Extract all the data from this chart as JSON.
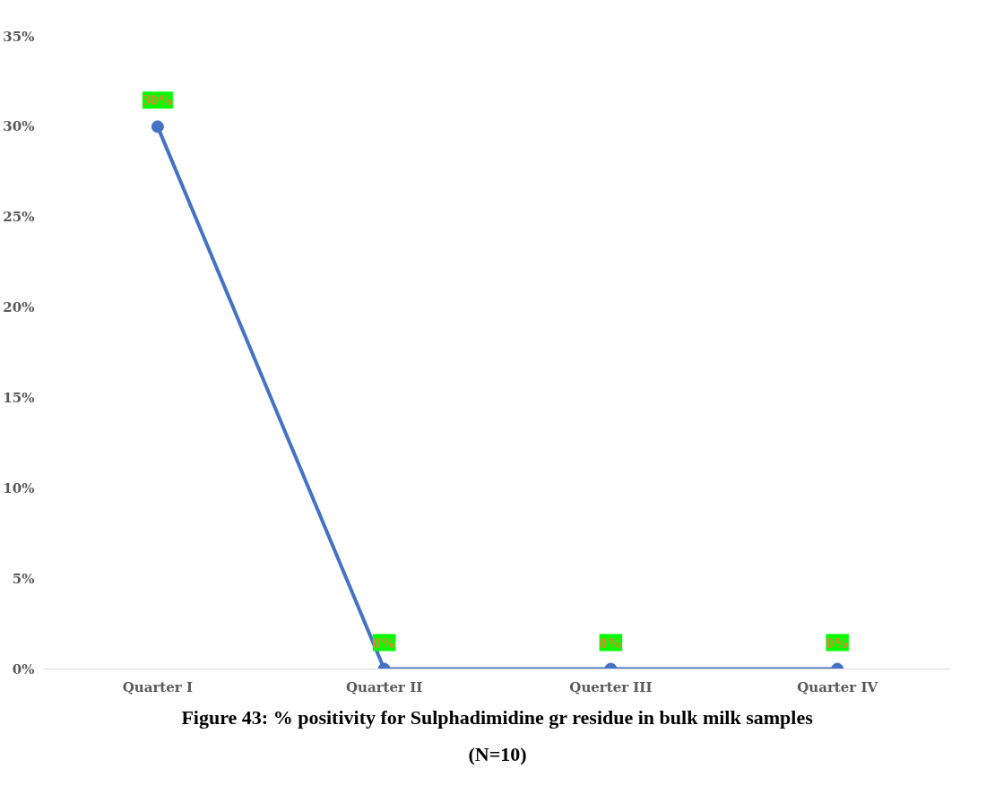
{
  "chart_data": {
    "type": "line",
    "title": "Figure 43: % positivity for Sulphadimidine gr residue in bulk milk samples (N=10)",
    "categories": [
      "Quarter I",
      "Quarter II",
      "Querter III",
      "Quarter IV"
    ],
    "series": [
      {
        "color": "#4472c4",
        "values": [
          30,
          0,
          0,
          0
        ],
        "value_labels": [
          "30%",
          "0%",
          "0%",
          "0%"
        ]
      }
    ],
    "ylim": [
      0,
      35
    ],
    "yticks": [
      {
        "value": 0,
        "label": "0%"
      },
      {
        "value": 5,
        "label": "5%"
      },
      {
        "value": 10,
        "label": "10%"
      },
      {
        "value": 15,
        "label": "15%"
      },
      {
        "value": 20,
        "label": "20%"
      },
      {
        "value": 25,
        "label": "25%"
      },
      {
        "value": 30,
        "label": "30%"
      },
      {
        "value": 35,
        "label": "35%"
      }
    ],
    "grid": false,
    "marker": "circle",
    "line_style": "solid"
  }
}
